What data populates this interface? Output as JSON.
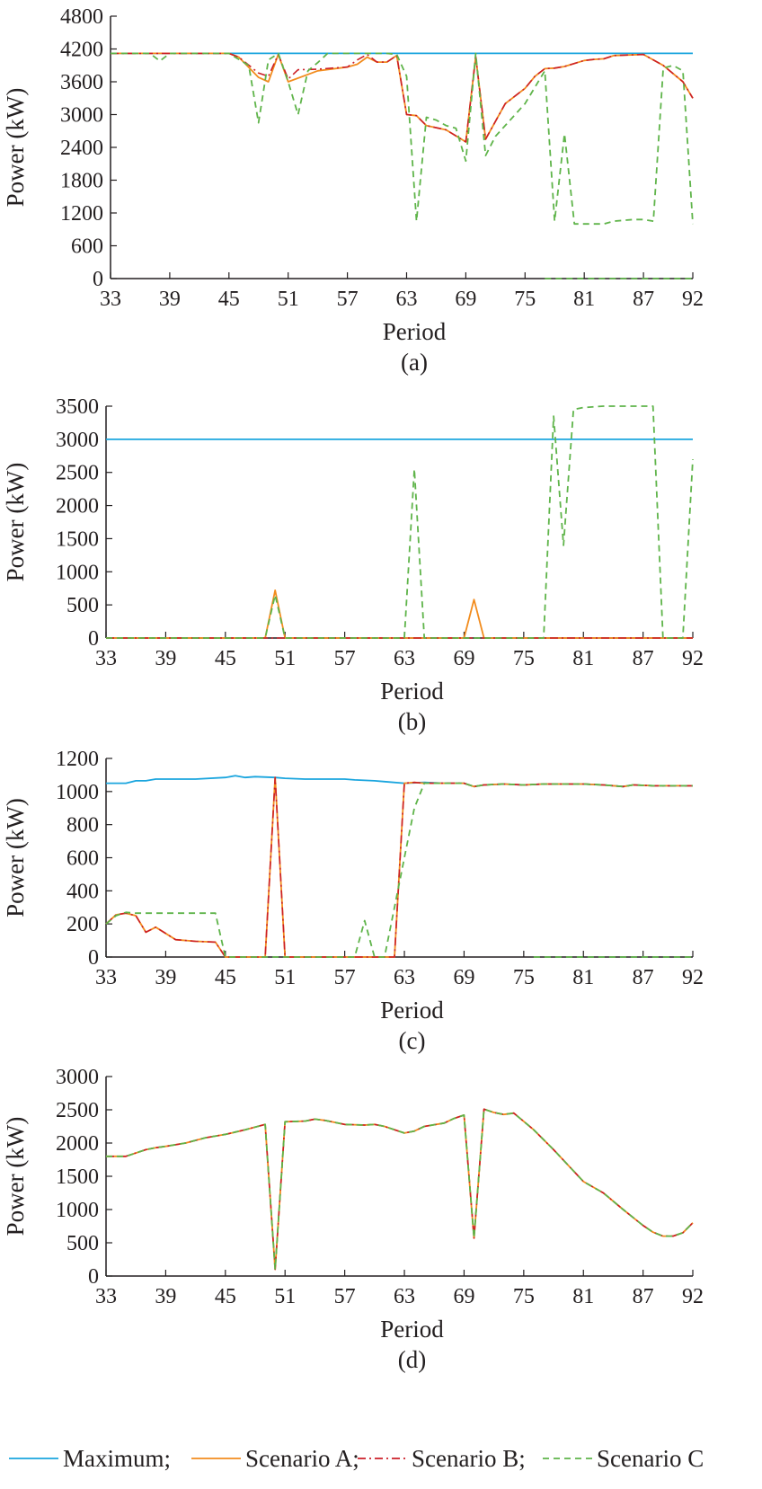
{
  "legend": [
    {
      "label": "Maximum;",
      "color": "#1aa5de",
      "dash": "solid"
    },
    {
      "label": "Scenario A;",
      "color": "#f28c1e",
      "dash": "solid"
    },
    {
      "label": "Scenario B;",
      "color": "#cc1f27",
      "dash": "dashdot"
    },
    {
      "label": "Scenario C",
      "color": "#5fb44a",
      "dash": "dashed"
    }
  ],
  "chart_data": [
    {
      "panel": "a",
      "caption": "(a)",
      "type": "line",
      "xlabel": "Period",
      "ylabel": "Power (kW)",
      "xlim": [
        33,
        92
      ],
      "ylim": [
        0,
        4800
      ],
      "xticks": [
        "33",
        "39",
        "45",
        "51",
        "57",
        "63",
        "69",
        "75",
        "81",
        "87",
        "92"
      ],
      "yticks": [
        "0",
        "600",
        "1200",
        "1800",
        "2400",
        "3000",
        "3600",
        "4200",
        "4800"
      ],
      "series": [
        {
          "name": "Maximum",
          "x": [
            33,
            92
          ],
          "values": [
            4120,
            4120
          ]
        },
        {
          "name": "Scenario A",
          "x": [
            33,
            45,
            46,
            48,
            49,
            50,
            51,
            54,
            57,
            58,
            59,
            60,
            61,
            62,
            63,
            64,
            65,
            67,
            69,
            70,
            71,
            73,
            75,
            76,
            77,
            78,
            79,
            81,
            82,
            83,
            84,
            87,
            89,
            91,
            92
          ],
          "values": [
            4120,
            4120,
            4050,
            3680,
            3600,
            4100,
            3600,
            3800,
            3870,
            3920,
            4050,
            3960,
            3960,
            4080,
            3000,
            2980,
            2800,
            2720,
            2500,
            4060,
            2550,
            3200,
            3480,
            3700,
            3840,
            3850,
            3880,
            3990,
            4010,
            4020,
            4080,
            4100,
            3900,
            3600,
            3300
          ]
        },
        {
          "name": "Scenario B",
          "x": [
            33,
            45,
            46,
            48,
            49,
            50,
            51,
            52,
            54,
            57,
            58,
            59,
            60,
            61,
            62,
            63,
            64,
            65,
            67,
            69,
            70,
            71,
            73,
            75,
            76,
            77,
            78,
            79,
            81,
            82,
            83,
            84,
            87,
            89,
            91,
            92
          ],
          "values": [
            4120,
            4120,
            4050,
            3760,
            3700,
            4100,
            3650,
            3820,
            3830,
            3870,
            4000,
            4100,
            3960,
            3960,
            4080,
            3000,
            2980,
            2800,
            2720,
            2500,
            4060,
            2550,
            3200,
            3480,
            3700,
            3840,
            3850,
            3880,
            3990,
            4010,
            4020,
            4080,
            4100,
            3900,
            3600,
            3300
          ]
        },
        {
          "name": "Scenario C",
          "x": [
            33,
            37,
            38,
            39,
            45,
            47,
            48,
            49,
            50,
            51,
            52,
            53,
            54,
            55,
            57,
            60,
            61,
            62,
            63,
            64,
            65,
            66,
            67,
            68,
            69,
            70,
            71,
            72,
            74,
            75,
            76,
            77,
            78,
            79,
            80,
            82,
            83,
            84,
            86,
            87,
            88,
            89,
            90,
            91,
            92
          ],
          "values": [
            4120,
            4120,
            3980,
            4120,
            4120,
            3900,
            2850,
            4000,
            4120,
            3600,
            3000,
            3800,
            3950,
            4120,
            4120,
            4120,
            4120,
            4100,
            3700,
            1050,
            2950,
            2900,
            2800,
            2750,
            2150,
            4120,
            2250,
            2600,
            3000,
            3200,
            3500,
            3800,
            1050,
            2650,
            1000,
            1000,
            1000,
            1050,
            1080,
            1080,
            1050,
            3850,
            3900,
            3800,
            1000
          ]
        },
        {
          "name": "Scenario C",
          "x": [
            77,
            92
          ],
          "values": [
            0,
            0
          ]
        }
      ]
    },
    {
      "panel": "b",
      "caption": "(b)",
      "type": "line",
      "xlabel": "Period",
      "ylabel": "Power (kW)",
      "xlim": [
        33,
        92
      ],
      "ylim": [
        0,
        3500
      ],
      "xticks": [
        "33",
        "39",
        "45",
        "51",
        "57",
        "63",
        "69",
        "75",
        "81",
        "87",
        "92"
      ],
      "yticks": [
        "0",
        "500",
        "1000",
        "1500",
        "2000",
        "2500",
        "3000",
        "3500"
      ],
      "series": [
        {
          "name": "Maximum",
          "x": [
            33,
            92
          ],
          "values": [
            3000,
            3000
          ]
        },
        {
          "name": "Scenario A",
          "x": [
            33,
            49,
            50,
            51,
            69,
            70,
            71,
            92
          ],
          "values": [
            0,
            0,
            720,
            0,
            0,
            580,
            0,
            0
          ]
        },
        {
          "name": "Scenario B",
          "x": [
            33,
            92
          ],
          "values": [
            0,
            0
          ]
        },
        {
          "name": "Scenario C",
          "x": [
            33,
            49,
            50,
            51,
            63,
            64,
            65,
            77,
            78,
            79,
            80,
            81,
            83,
            87,
            88,
            89,
            91,
            92
          ],
          "values": [
            0,
            0,
            650,
            0,
            0,
            2550,
            0,
            0,
            3350,
            1400,
            3450,
            3480,
            3500,
            3500,
            3500,
            0,
            0,
            2700
          ]
        }
      ]
    },
    {
      "panel": "c",
      "caption": "(c)",
      "type": "line",
      "xlabel": "Period",
      "ylabel": "Power (kW)",
      "xlim": [
        33,
        92
      ],
      "ylim": [
        0,
        1200
      ],
      "xticks": [
        "33",
        "39",
        "45",
        "51",
        "57",
        "63",
        "69",
        "75",
        "81",
        "87",
        "92"
      ],
      "yticks": [
        "0",
        "200",
        "400",
        "600",
        "800",
        "1000",
        "1200"
      ],
      "series": [
        {
          "name": "Maximum",
          "x": [
            33,
            35,
            36,
            37,
            38,
            42,
            45,
            46,
            47,
            48,
            50,
            51,
            53,
            55,
            57,
            58,
            60,
            61,
            63,
            65,
            67,
            69,
            70,
            71,
            73,
            75,
            77,
            79,
            81,
            83,
            85,
            86,
            88,
            90,
            92
          ],
          "values": [
            1050,
            1050,
            1065,
            1065,
            1075,
            1075,
            1085,
            1095,
            1085,
            1090,
            1085,
            1080,
            1075,
            1075,
            1075,
            1070,
            1065,
            1060,
            1050,
            1055,
            1050,
            1050,
            1030,
            1040,
            1045,
            1040,
            1045,
            1045,
            1045,
            1040,
            1030,
            1040,
            1035,
            1035,
            1035
          ]
        },
        {
          "name": "Scenario A",
          "x": [
            33,
            34,
            35,
            36,
            37,
            38,
            40,
            42,
            44,
            45,
            49,
            50,
            51,
            62,
            63,
            64,
            65,
            67,
            69,
            70,
            71,
            73,
            75,
            77,
            79,
            81,
            83,
            85,
            86,
            88,
            90,
            92
          ],
          "values": [
            200,
            255,
            265,
            250,
            150,
            180,
            105,
            95,
            90,
            0,
            0,
            1085,
            0,
            0,
            1050,
            1055,
            1050,
            1050,
            1050,
            1030,
            1040,
            1045,
            1040,
            1045,
            1045,
            1045,
            1040,
            1030,
            1040,
            1035,
            1035,
            1035
          ]
        },
        {
          "name": "Scenario B",
          "x": [
            33,
            34,
            35,
            36,
            37,
            38,
            40,
            42,
            44,
            45,
            49,
            50,
            51,
            62,
            63,
            64,
            65,
            67,
            69,
            70,
            71,
            73,
            75,
            77,
            79,
            81,
            83,
            85,
            86,
            88,
            90,
            92
          ],
          "values": [
            200,
            255,
            265,
            250,
            150,
            180,
            105,
            95,
            90,
            0,
            0,
            1085,
            0,
            0,
            1050,
            1055,
            1050,
            1050,
            1050,
            1030,
            1040,
            1045,
            1040,
            1045,
            1045,
            1045,
            1040,
            1030,
            1040,
            1035,
            1035,
            1035
          ]
        },
        {
          "name": "Scenario C",
          "x": [
            33,
            34,
            35,
            36,
            44,
            45,
            58,
            59,
            60,
            61,
            62,
            63,
            64,
            65,
            67,
            69,
            70,
            71,
            73,
            75,
            77,
            79,
            81,
            83,
            85,
            86,
            88,
            90,
            92
          ],
          "values": [
            200,
            250,
            270,
            265,
            265,
            0,
            0,
            220,
            0,
            0,
            300,
            600,
            900,
            1050,
            1050,
            1050,
            1030,
            1040,
            1045,
            1040,
            1045,
            1045,
            1045,
            1040,
            1030,
            1040,
            1035,
            1035,
            1035
          ]
        },
        {
          "name": "Scenario C",
          "x": [
            76,
            92
          ],
          "values": [
            0,
            0
          ]
        }
      ]
    },
    {
      "panel": "d",
      "caption": "(d)",
      "type": "line",
      "xlabel": "Period",
      "ylabel": "Power (kW)",
      "xlim": [
        33,
        92
      ],
      "ylim": [
        0,
        3000
      ],
      "xticks": [
        "33",
        "39",
        "45",
        "51",
        "57",
        "63",
        "69",
        "75",
        "81",
        "87",
        "92"
      ],
      "yticks": [
        "0",
        "500",
        "1000",
        "1500",
        "2000",
        "2500",
        "3000"
      ],
      "series": [
        {
          "name": "Scenario A",
          "x": [
            33,
            35,
            37,
            38,
            39,
            41,
            43,
            45,
            47,
            49,
            50,
            51,
            53,
            54,
            55,
            57,
            59,
            60,
            61,
            62,
            63,
            64,
            65,
            67,
            68,
            69,
            70,
            71,
            72,
            73,
            74,
            76,
            78,
            81,
            83,
            85,
            86,
            87,
            88,
            89,
            90,
            91,
            92
          ],
          "values": [
            1800,
            1800,
            1900,
            1930,
            1950,
            2000,
            2080,
            2130,
            2200,
            2280,
            100,
            2320,
            2330,
            2360,
            2340,
            2280,
            2270,
            2280,
            2250,
            2200,
            2150,
            2180,
            2250,
            2300,
            2370,
            2420,
            570,
            2510,
            2460,
            2430,
            2450,
            2200,
            1900,
            1420,
            1250,
            1000,
            880,
            760,
            660,
            600,
            600,
            650,
            800
          ]
        },
        {
          "name": "Scenario B",
          "x": [
            33,
            35,
            37,
            38,
            39,
            41,
            43,
            45,
            47,
            49,
            50,
            51,
            53,
            54,
            55,
            57,
            59,
            60,
            61,
            62,
            63,
            64,
            65,
            67,
            68,
            69,
            70,
            71,
            72,
            73,
            74,
            76,
            78,
            81,
            83,
            85,
            86,
            87,
            88,
            89,
            90,
            91,
            92
          ],
          "values": [
            1800,
            1800,
            1900,
            1930,
            1950,
            2000,
            2080,
            2130,
            2200,
            2280,
            100,
            2320,
            2330,
            2360,
            2340,
            2280,
            2270,
            2280,
            2250,
            2200,
            2150,
            2180,
            2250,
            2300,
            2370,
            2420,
            570,
            2510,
            2460,
            2430,
            2450,
            2200,
            1900,
            1420,
            1250,
            1000,
            880,
            760,
            660,
            600,
            600,
            650,
            800
          ]
        },
        {
          "name": "Scenario C",
          "x": [
            33,
            35,
            37,
            38,
            39,
            41,
            43,
            45,
            47,
            49,
            50,
            51,
            53,
            54,
            55,
            57,
            59,
            60,
            61,
            62,
            63,
            64,
            65,
            67,
            68,
            69,
            70,
            71,
            72,
            73,
            74,
            76,
            78,
            81,
            83,
            85,
            86,
            87,
            88,
            89,
            90,
            91,
            92
          ],
          "values": [
            1800,
            1800,
            1900,
            1930,
            1950,
            2000,
            2080,
            2130,
            2200,
            2280,
            100,
            2320,
            2330,
            2360,
            2340,
            2280,
            2270,
            2280,
            2250,
            2200,
            2150,
            2180,
            2250,
            2300,
            2370,
            2420,
            570,
            2510,
            2460,
            2430,
            2450,
            2200,
            1900,
            1420,
            1250,
            1000,
            880,
            760,
            660,
            600,
            600,
            650,
            800
          ]
        }
      ]
    }
  ]
}
